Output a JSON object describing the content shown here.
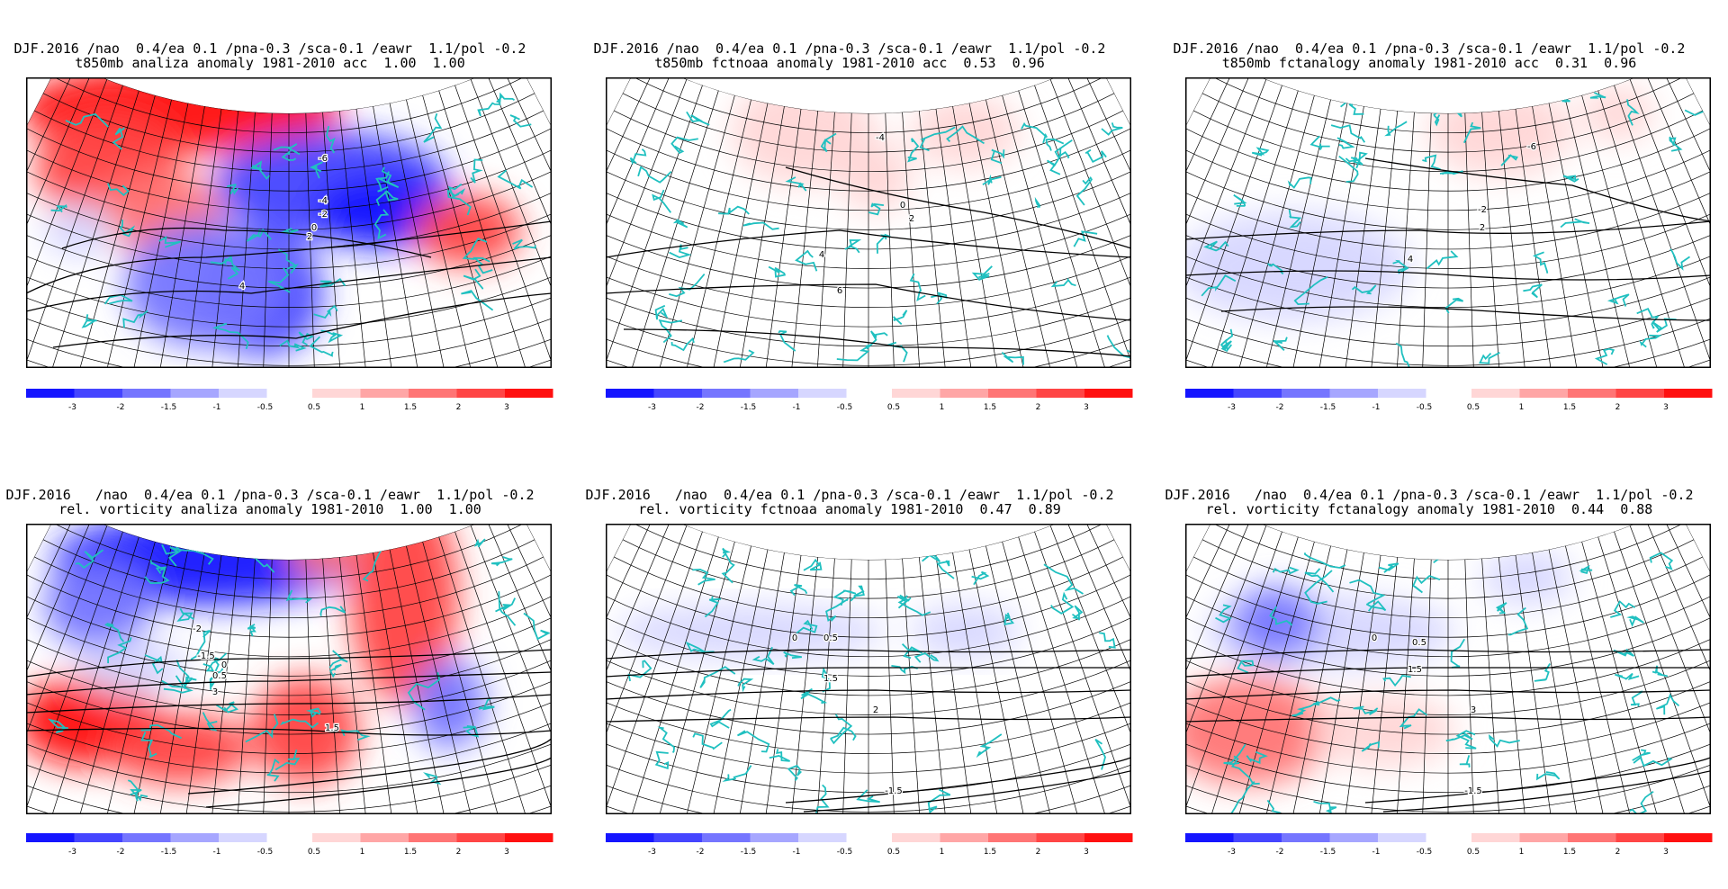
{
  "colorbar": {
    "negative_labels": [
      "-3",
      "-2",
      "-1.5",
      "-1",
      "-0.5"
    ],
    "positive_labels": [
      "0.5",
      "1",
      "1.5",
      "2",
      "3"
    ],
    "negative_colors": [
      "#1515ff",
      "#4545ff",
      "#7575ff",
      "#a6a6ff",
      "#d6d6ff"
    ],
    "positive_colors": [
      "#ffd6d6",
      "#ffa6a6",
      "#ff7575",
      "#ff4545",
      "#ff1010"
    ]
  },
  "colors": {
    "coast": "#20c0c0",
    "contour": "#000000",
    "grid": "#000000"
  },
  "panels": [
    {
      "line1": "DJF.2016 /nao  0.4/ea 0.1 /pna-0.3 /sca-0.1 /eawr  1.1/pol -0.2",
      "line2": "t850mb analiza anomaly 1981-2010 acc  1.00  1.00",
      "contour_labels": [
        "-6",
        "-4",
        "-2",
        "0",
        "2",
        "4"
      ]
    },
    {
      "line1": "DJF.2016 /nao  0.4/ea 0.1 /pna-0.3 /sca-0.1 /eawr  1.1/pol -0.2",
      "line2": "t850mb fctnoaa anomaly 1981-2010 acc  0.53  0.96",
      "contour_labels": [
        "-4",
        "0",
        "2",
        "4",
        "6"
      ]
    },
    {
      "line1": "DJF.2016 /nao  0.4/ea 0.1 /pna-0.3 /sca-0.1 /eawr  1.1/pol -0.2",
      "line2": "t850mb fctanalogy anomaly 1981-2010 acc  0.31  0.96",
      "contour_labels": [
        "-6",
        "-2",
        "2",
        "4"
      ]
    },
    {
      "line1": "DJF.2016   /nao  0.4/ea 0.1 /pna-0.3 /sca-0.1 /eawr  1.1/pol -0.2",
      "line2": "rel. vorticity analiza anomaly 1981-2010  1.00  1.00",
      "contour_labels": [
        "-2",
        "-1.5",
        "0",
        "0.5",
        "1.5",
        "3"
      ]
    },
    {
      "line1": "DJF.2016   /nao  0.4/ea 0.1 /pna-0.3 /sca-0.1 /eawr  1.1/pol -0.2",
      "line2": "rel. vorticity fctnoaa anomaly 1981-2010  0.47  0.89",
      "contour_labels": [
        "0",
        "0.5",
        "1.5",
        "2",
        "-1.5"
      ]
    },
    {
      "line1": "DJF.2016   /nao  0.4/ea 0.1 /pna-0.3 /sca-0.1 /eawr  1.1/pol -0.2",
      "line2": "rel. vorticity fctanalogy anomaly 1981-2010  0.44  0.88",
      "contour_labels": [
        "0",
        "0.5",
        "1.5",
        "3",
        "-1.5"
      ]
    }
  ]
}
